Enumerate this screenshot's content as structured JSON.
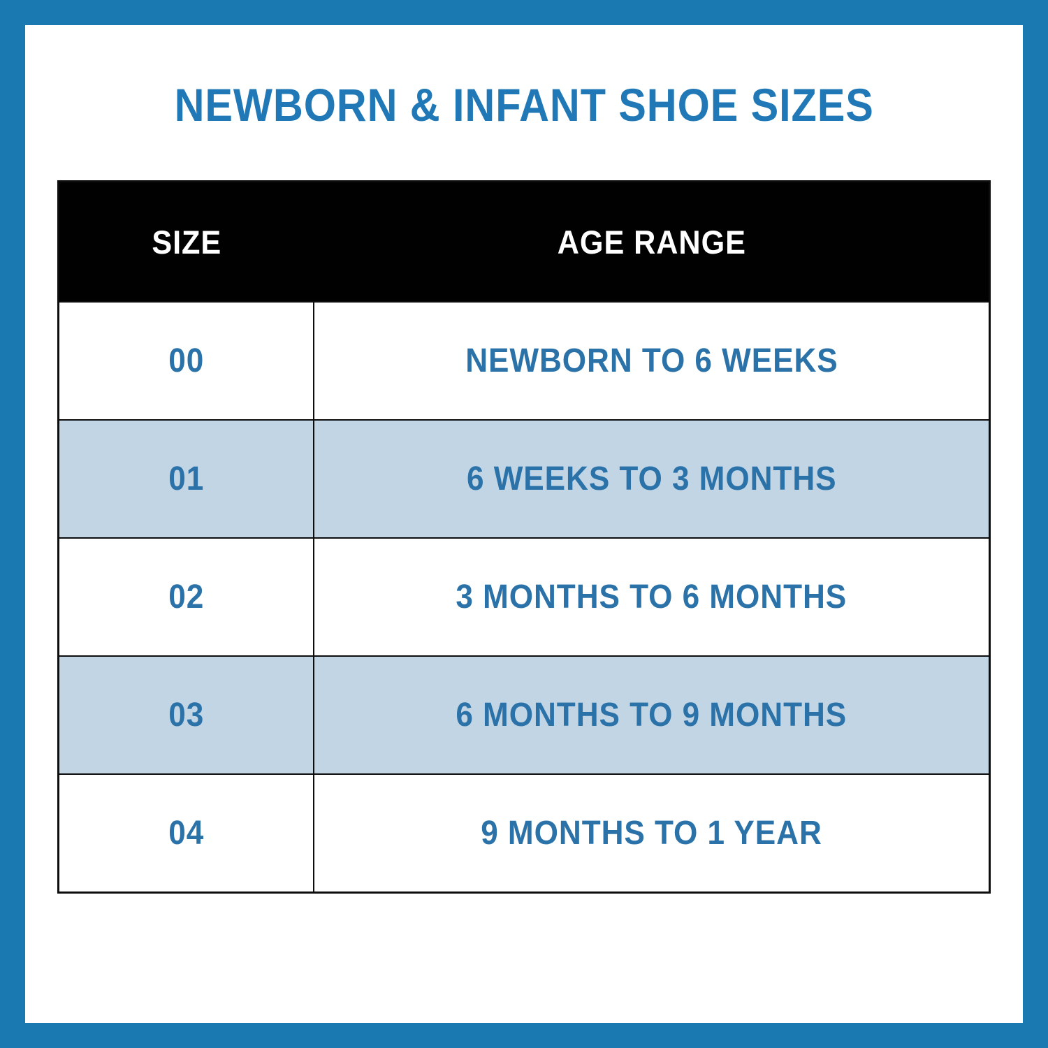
{
  "title": "NEWBORN & INFANT SHOE SIZES",
  "colors": {
    "frame_blue": "#1b79b1",
    "title_blue": "#2079b6",
    "row_text_blue": "#2b72a9",
    "header_bg": "#010101",
    "header_text": "#ffffff",
    "row_alt_bg": "#c2d5e5",
    "row_bg": "#ffffff",
    "table_border": "#0d0d0d"
  },
  "chart_data": {
    "type": "table",
    "title": "NEWBORN & INFANT SHOE SIZES",
    "columns": [
      "SIZE",
      "AGE RANGE"
    ],
    "rows": [
      [
        "00",
        "NEWBORN TO 6 WEEKS"
      ],
      [
        "01",
        "6 WEEKS TO 3 MONTHS"
      ],
      [
        "02",
        "3 MONTHS TO 6 MONTHS"
      ],
      [
        "03",
        "6 MONTHS TO 9 MONTHS"
      ],
      [
        "04",
        "9 MONTHS TO 1 YEAR"
      ]
    ],
    "layout": {
      "alternating_row_shading": "rows 01 and 03 shaded light blue",
      "header_style": "black background, white text",
      "grid": "outer black border, row separators, single column divider"
    }
  },
  "table": {
    "columns": {
      "size": "SIZE",
      "age": "AGE RANGE"
    },
    "rows": [
      {
        "size": "00",
        "age": "NEWBORN TO 6 WEEKS"
      },
      {
        "size": "01",
        "age": "6 WEEKS TO 3 MONTHS"
      },
      {
        "size": "02",
        "age": "3 MONTHS TO 6 MONTHS"
      },
      {
        "size": "03",
        "age": "6 MONTHS TO 9 MONTHS"
      },
      {
        "size": "04",
        "age": "9 MONTHS TO 1 YEAR"
      }
    ]
  }
}
